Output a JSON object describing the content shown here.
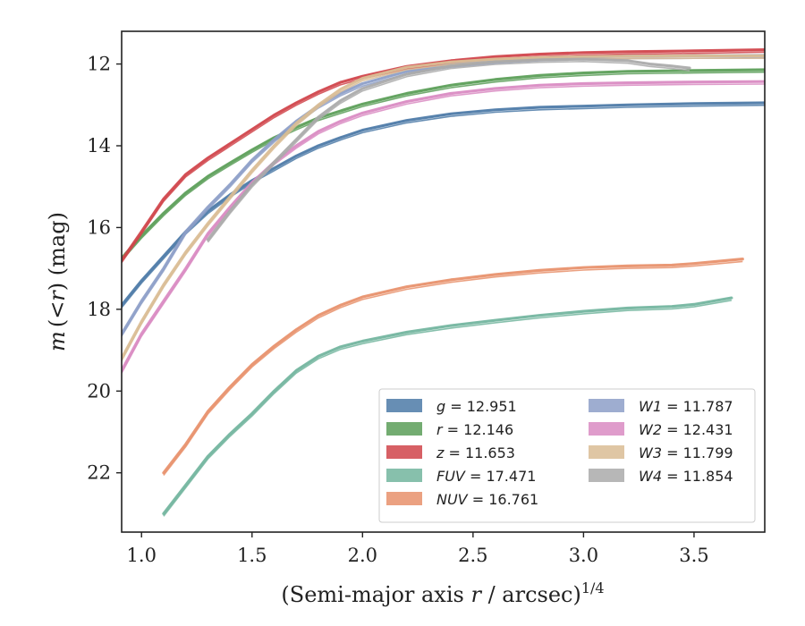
{
  "chart_data": {
    "type": "line",
    "xlabel_main": "(Semi-major axis ",
    "xlabel_var": "r",
    "xlabel_tail": " / arcsec)",
    "xlabel_sup": "1/4",
    "ylabel_m": "m",
    "ylabel_open": "(<",
    "ylabel_r": "r",
    "ylabel_close": ") (mag)",
    "xlim": [
      0.91,
      3.82
    ],
    "ylim": [
      23.45,
      11.2
    ],
    "y_inverted": true,
    "grid": false,
    "legend_position": "lower-right",
    "xticks": [
      {
        "v": 1.0,
        "label": "1.0"
      },
      {
        "v": 1.5,
        "label": "1.5"
      },
      {
        "v": 2.0,
        "label": "2.0"
      },
      {
        "v": 2.5,
        "label": "2.5"
      },
      {
        "v": 3.0,
        "label": "3.0"
      },
      {
        "v": 3.5,
        "label": "3.5"
      }
    ],
    "yticks": [
      {
        "v": 12,
        "label": "12"
      },
      {
        "v": 14,
        "label": "14"
      },
      {
        "v": 16,
        "label": "16"
      },
      {
        "v": 18,
        "label": "18"
      },
      {
        "v": 20,
        "label": "20"
      },
      {
        "v": 22,
        "label": "22"
      }
    ],
    "series": [
      {
        "name": "g",
        "value": "12.951",
        "color": "#4c7aa7",
        "x_end": 3.82,
        "points": [
          [
            0.91,
            17.9
          ],
          [
            1.0,
            17.3
          ],
          [
            1.1,
            16.7
          ],
          [
            1.2,
            16.1
          ],
          [
            1.3,
            15.6
          ],
          [
            1.4,
            15.2
          ],
          [
            1.5,
            14.85
          ],
          [
            1.6,
            14.55
          ],
          [
            1.7,
            14.25
          ],
          [
            1.8,
            14.0
          ],
          [
            1.9,
            13.8
          ],
          [
            2.0,
            13.62
          ],
          [
            2.2,
            13.38
          ],
          [
            2.4,
            13.22
          ],
          [
            2.6,
            13.12
          ],
          [
            2.8,
            13.06
          ],
          [
            3.0,
            13.03
          ],
          [
            3.2,
            13.0
          ],
          [
            3.5,
            12.97
          ],
          [
            3.82,
            12.95
          ]
        ]
      },
      {
        "name": "r",
        "value": "12.146",
        "color": "#5b9e58",
        "x_end": 3.82,
        "points": [
          [
            0.91,
            16.75
          ],
          [
            1.0,
            16.2
          ],
          [
            1.1,
            15.65
          ],
          [
            1.2,
            15.15
          ],
          [
            1.3,
            14.75
          ],
          [
            1.4,
            14.42
          ],
          [
            1.5,
            14.1
          ],
          [
            1.6,
            13.8
          ],
          [
            1.7,
            13.55
          ],
          [
            1.8,
            13.32
          ],
          [
            1.9,
            13.15
          ],
          [
            2.0,
            12.98
          ],
          [
            2.2,
            12.72
          ],
          [
            2.4,
            12.52
          ],
          [
            2.6,
            12.38
          ],
          [
            2.8,
            12.28
          ],
          [
            3.0,
            12.22
          ],
          [
            3.2,
            12.18
          ],
          [
            3.5,
            12.16
          ],
          [
            3.82,
            12.14
          ]
        ]
      },
      {
        "name": "z",
        "value": "11.653",
        "color": "#d0444a",
        "x_end": 3.82,
        "points": [
          [
            0.91,
            16.8
          ],
          [
            1.0,
            16.1
          ],
          [
            1.1,
            15.3
          ],
          [
            1.2,
            14.7
          ],
          [
            1.3,
            14.3
          ],
          [
            1.4,
            13.95
          ],
          [
            1.5,
            13.6
          ],
          [
            1.6,
            13.25
          ],
          [
            1.7,
            12.95
          ],
          [
            1.8,
            12.68
          ],
          [
            1.9,
            12.45
          ],
          [
            2.0,
            12.3
          ],
          [
            2.2,
            12.06
          ],
          [
            2.4,
            11.92
          ],
          [
            2.6,
            11.82
          ],
          [
            2.8,
            11.76
          ],
          [
            3.0,
            11.72
          ],
          [
            3.2,
            11.7
          ],
          [
            3.5,
            11.68
          ],
          [
            3.82,
            11.65
          ]
        ]
      },
      {
        "name": "FUV",
        "value": "17.471",
        "color": "#72b59e",
        "x_end": 3.67,
        "points": [
          [
            1.1,
            23.0
          ],
          [
            1.2,
            22.3
          ],
          [
            1.3,
            21.6
          ],
          [
            1.4,
            21.05
          ],
          [
            1.5,
            20.55
          ],
          [
            1.6,
            20.0
          ],
          [
            1.7,
            19.5
          ],
          [
            1.8,
            19.15
          ],
          [
            1.9,
            18.92
          ],
          [
            2.0,
            18.78
          ],
          [
            2.2,
            18.56
          ],
          [
            2.4,
            18.4
          ],
          [
            2.6,
            18.27
          ],
          [
            2.8,
            18.15
          ],
          [
            3.0,
            18.05
          ],
          [
            3.2,
            17.97
          ],
          [
            3.4,
            17.93
          ],
          [
            3.5,
            17.88
          ],
          [
            3.67,
            17.72
          ]
        ]
      },
      {
        "name": "NUV",
        "value": "16.761",
        "color": "#e8916b",
        "x_end": 3.72,
        "points": [
          [
            1.1,
            22.0
          ],
          [
            1.2,
            21.3
          ],
          [
            1.3,
            20.5
          ],
          [
            1.4,
            19.9
          ],
          [
            1.5,
            19.35
          ],
          [
            1.6,
            18.9
          ],
          [
            1.7,
            18.5
          ],
          [
            1.8,
            18.15
          ],
          [
            1.9,
            17.9
          ],
          [
            2.0,
            17.7
          ],
          [
            2.2,
            17.45
          ],
          [
            2.4,
            17.28
          ],
          [
            2.6,
            17.15
          ],
          [
            2.8,
            17.05
          ],
          [
            3.0,
            16.98
          ],
          [
            3.2,
            16.94
          ],
          [
            3.4,
            16.92
          ],
          [
            3.5,
            16.88
          ],
          [
            3.72,
            16.77
          ]
        ]
      },
      {
        "name": "W1",
        "value": "11.787",
        "color": "#8d9fc8",
        "x_end": 3.82,
        "points": [
          [
            0.91,
            18.6
          ],
          [
            1.0,
            17.8
          ],
          [
            1.1,
            17.0
          ],
          [
            1.2,
            16.1
          ],
          [
            1.3,
            15.5
          ],
          [
            1.4,
            14.95
          ],
          [
            1.5,
            14.35
          ],
          [
            1.6,
            13.85
          ],
          [
            1.7,
            13.4
          ],
          [
            1.8,
            13.02
          ],
          [
            1.9,
            12.72
          ],
          [
            2.0,
            12.48
          ],
          [
            2.2,
            12.18
          ],
          [
            2.4,
            12.02
          ],
          [
            2.6,
            11.92
          ],
          [
            2.8,
            11.86
          ],
          [
            3.0,
            11.83
          ],
          [
            3.2,
            11.81
          ],
          [
            3.5,
            11.8
          ],
          [
            3.82,
            11.79
          ]
        ]
      },
      {
        "name": "W2",
        "value": "12.431",
        "color": "#d98bc2",
        "x_end": 3.82,
        "points": [
          [
            0.91,
            19.5
          ],
          [
            1.0,
            18.6
          ],
          [
            1.1,
            17.8
          ],
          [
            1.2,
            17.0
          ],
          [
            1.3,
            16.15
          ],
          [
            1.4,
            15.5
          ],
          [
            1.5,
            14.9
          ],
          [
            1.6,
            14.4
          ],
          [
            1.7,
            14.0
          ],
          [
            1.8,
            13.65
          ],
          [
            1.9,
            13.4
          ],
          [
            2.0,
            13.2
          ],
          [
            2.2,
            12.92
          ],
          [
            2.4,
            12.72
          ],
          [
            2.6,
            12.6
          ],
          [
            2.8,
            12.52
          ],
          [
            3.0,
            12.48
          ],
          [
            3.2,
            12.46
          ],
          [
            3.5,
            12.44
          ],
          [
            3.82,
            12.43
          ]
        ]
      },
      {
        "name": "W3",
        "value": "11.799",
        "color": "#d9bc94",
        "x_end": 3.82,
        "points": [
          [
            0.91,
            19.2
          ],
          [
            1.0,
            18.3
          ],
          [
            1.1,
            17.4
          ],
          [
            1.2,
            16.6
          ],
          [
            1.3,
            15.9
          ],
          [
            1.4,
            15.25
          ],
          [
            1.5,
            14.6
          ],
          [
            1.6,
            14.0
          ],
          [
            1.7,
            13.45
          ],
          [
            1.8,
            13.0
          ],
          [
            1.9,
            12.62
          ],
          [
            2.0,
            12.35
          ],
          [
            2.2,
            12.08
          ],
          [
            2.4,
            11.95
          ],
          [
            2.6,
            11.88
          ],
          [
            2.8,
            11.84
          ],
          [
            3.0,
            11.82
          ],
          [
            3.2,
            11.81
          ],
          [
            3.5,
            11.8
          ],
          [
            3.82,
            11.8
          ]
        ]
      },
      {
        "name": "W4",
        "value": "11.854",
        "color": "#aaaaaa",
        "x_end": 3.48,
        "points": [
          [
            1.3,
            16.3
          ],
          [
            1.4,
            15.6
          ],
          [
            1.5,
            14.95
          ],
          [
            1.6,
            14.4
          ],
          [
            1.7,
            13.85
          ],
          [
            1.8,
            13.3
          ],
          [
            1.9,
            12.9
          ],
          [
            2.0,
            12.6
          ],
          [
            2.2,
            12.25
          ],
          [
            2.4,
            12.05
          ],
          [
            2.6,
            11.95
          ],
          [
            2.8,
            11.9
          ],
          [
            3.0,
            11.88
          ],
          [
            3.2,
            11.92
          ],
          [
            3.3,
            12.0
          ],
          [
            3.4,
            12.05
          ],
          [
            3.48,
            12.1
          ]
        ]
      }
    ],
    "legend": {
      "col1": [
        {
          "var": "g",
          "eq": " = 12.951",
          "color": "#4c7aa7"
        },
        {
          "var": "r",
          "eq": " = 12.146",
          "color": "#5b9e58"
        },
        {
          "var": "z",
          "eq": " = 11.653",
          "color": "#d0444a"
        },
        {
          "var": "FUV",
          "eq": " = 17.471",
          "color": "#72b59e"
        },
        {
          "var": "NUV",
          "eq": " = 16.761",
          "color": "#e8916b"
        }
      ],
      "col2": [
        {
          "var": "W1",
          "eq": " = 11.787",
          "color": "#8d9fc8"
        },
        {
          "var": "W2",
          "eq": " = 12.431",
          "color": "#d98bc2"
        },
        {
          "var": "W3",
          "eq": " = 11.799",
          "color": "#d9bc94"
        },
        {
          "var": "W4",
          "eq": " = 11.854",
          "color": "#aaaaaa"
        }
      ]
    }
  }
}
